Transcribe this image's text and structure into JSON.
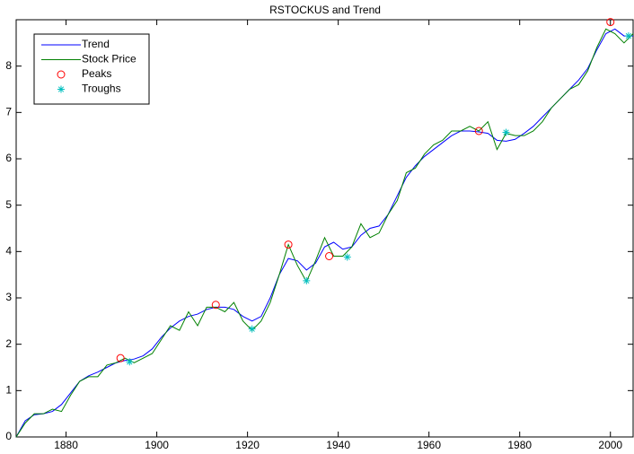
{
  "chart_data": {
    "type": "line",
    "title": "RSTOCKUS and Trend",
    "x": [
      1869,
      1871,
      1873,
      1875,
      1877,
      1879,
      1881,
      1883,
      1885,
      1887,
      1889,
      1891,
      1893,
      1895,
      1897,
      1899,
      1901,
      1903,
      1905,
      1907,
      1909,
      1911,
      1913,
      1915,
      1917,
      1919,
      1921,
      1923,
      1925,
      1927,
      1929,
      1931,
      1933,
      1935,
      1937,
      1939,
      1941,
      1943,
      1945,
      1947,
      1949,
      1951,
      1953,
      1955,
      1957,
      1959,
      1961,
      1963,
      1965,
      1967,
      1969,
      1971,
      1973,
      1975,
      1977,
      1979,
      1981,
      1983,
      1985,
      1987,
      1989,
      1991,
      1993,
      1995,
      1997,
      1999,
      2001,
      2003,
      2005
    ],
    "series": [
      {
        "name": "Trend",
        "color": "#0000ff",
        "values": [
          0.0,
          0.35,
          0.48,
          0.5,
          0.55,
          0.7,
          0.95,
          1.2,
          1.32,
          1.4,
          1.5,
          1.6,
          1.65,
          1.68,
          1.75,
          1.9,
          2.15,
          2.35,
          2.5,
          2.6,
          2.65,
          2.75,
          2.8,
          2.8,
          2.75,
          2.6,
          2.5,
          2.6,
          3.0,
          3.5,
          3.85,
          3.8,
          3.6,
          3.75,
          4.1,
          4.2,
          4.05,
          4.1,
          4.35,
          4.5,
          4.55,
          4.8,
          5.2,
          5.6,
          5.85,
          6.05,
          6.2,
          6.35,
          6.5,
          6.6,
          6.6,
          6.58,
          6.55,
          6.4,
          6.38,
          6.42,
          6.55,
          6.7,
          6.9,
          7.1,
          7.3,
          7.5,
          7.7,
          7.95,
          8.35,
          8.7,
          8.8,
          8.65,
          8.65
        ]
      },
      {
        "name": "Stock Price",
        "color": "#008000",
        "values": [
          0.0,
          0.3,
          0.5,
          0.5,
          0.6,
          0.55,
          0.9,
          1.2,
          1.3,
          1.3,
          1.55,
          1.6,
          1.7,
          1.6,
          1.7,
          1.8,
          2.1,
          2.4,
          2.3,
          2.7,
          2.4,
          2.8,
          2.8,
          2.7,
          2.9,
          2.5,
          2.3,
          2.5,
          2.9,
          3.5,
          4.15,
          3.7,
          3.35,
          3.8,
          4.3,
          3.9,
          3.9,
          4.1,
          4.6,
          4.3,
          4.4,
          4.8,
          5.1,
          5.7,
          5.8,
          6.1,
          6.3,
          6.4,
          6.6,
          6.6,
          6.7,
          6.6,
          6.8,
          6.2,
          6.55,
          6.5,
          6.5,
          6.6,
          6.8,
          7.1,
          7.3,
          7.5,
          7.6,
          7.9,
          8.4,
          8.8,
          8.7,
          8.5,
          8.7
        ]
      },
      {
        "name": "Peaks",
        "color": "#ff0000",
        "marker": "o",
        "x": [
          1892,
          1913,
          1929,
          1938,
          1971,
          2000
        ],
        "values": [
          1.7,
          2.85,
          4.15,
          3.9,
          6.6,
          8.95
        ]
      },
      {
        "name": "Troughs",
        "color": "#00bfbf",
        "marker": "*",
        "x": [
          1894,
          1921,
          1933,
          1942,
          1977,
          2004
        ],
        "values": [
          1.62,
          2.33,
          3.37,
          3.88,
          6.57,
          8.65
        ]
      }
    ],
    "xlim": [
      1869,
      2005
    ],
    "ylim": [
      0,
      9
    ],
    "xticks": [
      1880,
      1900,
      1920,
      1940,
      1960,
      1980,
      2000
    ],
    "yticks": [
      0,
      1,
      2,
      3,
      4,
      5,
      6,
      7,
      8
    ],
    "legend": "upper left"
  }
}
